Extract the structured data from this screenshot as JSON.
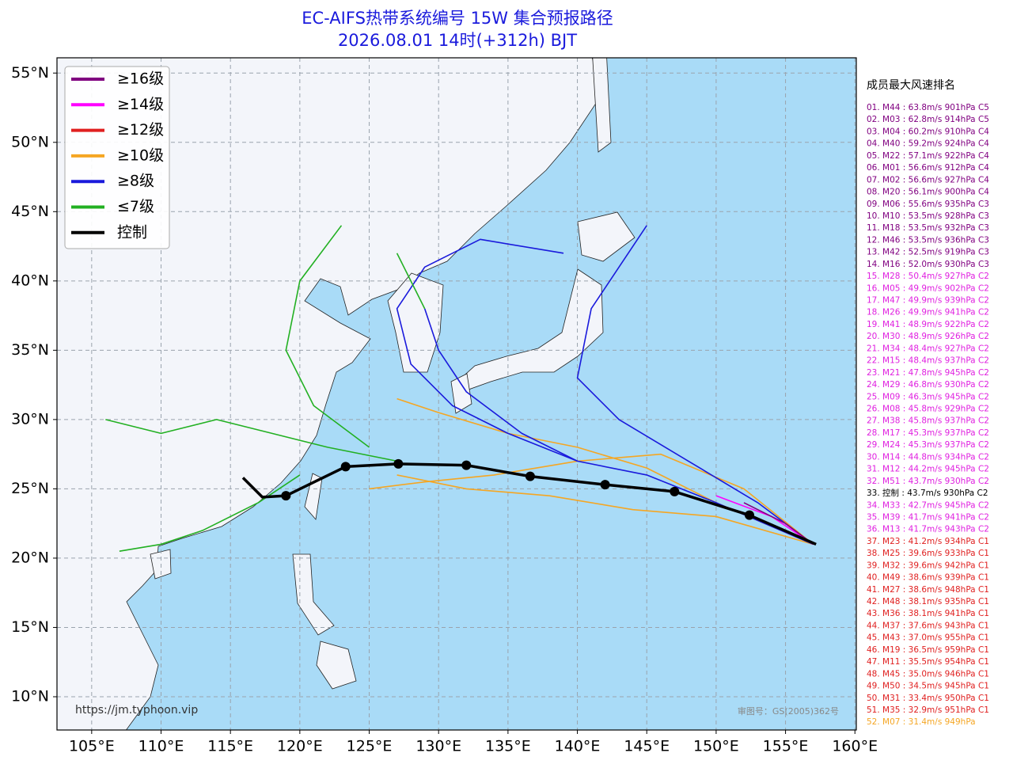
{
  "chart_data": {
    "type": "track-map",
    "title": "EC-AIFS热带系统编号 15W 集合预报路径",
    "subtitle": "2026.08.01 14时(+312h) BJT",
    "xlim": [
      102.5,
      160.1
    ],
    "ylim": [
      7.6,
      56.1
    ],
    "xticks": [
      {
        "value": 105,
        "label": "105°E"
      },
      {
        "value": 110,
        "label": "110°E"
      },
      {
        "value": 115,
        "label": "115°E"
      },
      {
        "value": 120,
        "label": "120°E"
      },
      {
        "value": 125,
        "label": "125°E"
      },
      {
        "value": 130,
        "label": "130°E"
      },
      {
        "value": 135,
        "label": "135°E"
      },
      {
        "value": 140,
        "label": "140°E"
      },
      {
        "value": 145,
        "label": "145°E"
      },
      {
        "value": 150,
        "label": "150°E"
      },
      {
        "value": 155,
        "label": "155°E"
      },
      {
        "value": 160,
        "label": "160°E"
      }
    ],
    "yticks": [
      {
        "value": 10,
        "label": "10°N"
      },
      {
        "value": 15,
        "label": "15°N"
      },
      {
        "value": 20,
        "label": "20°N"
      },
      {
        "value": 25,
        "label": "25°N"
      },
      {
        "value": 30,
        "label": "30°N"
      },
      {
        "value": 35,
        "label": "35°N"
      },
      {
        "value": 40,
        "label": "40°N"
      },
      {
        "value": 45,
        "label": "45°N"
      },
      {
        "value": 50,
        "label": "50°N"
      },
      {
        "value": 55,
        "label": "55°N"
      }
    ],
    "grid": true,
    "legend": [
      {
        "name": "≥16级",
        "color": "#800080"
      },
      {
        "name": "≥14级",
        "color": "#ff00ff"
      },
      {
        "name": "≥12级",
        "color": "#e02020"
      },
      {
        "name": "≥10级",
        "color": "#f5a623"
      },
      {
        "name": "≥8级",
        "color": "#1a1adc"
      },
      {
        "name": "≤7级",
        "color": "#22b022"
      },
      {
        "name": "控制",
        "color": "#000000"
      }
    ],
    "tracks": [
      {
        "color": "#f5a623",
        "x": [
          157,
          150,
          145,
          140,
          135,
          130,
          127
        ],
        "y": [
          21,
          24,
          26.5,
          28,
          29,
          30.5,
          31.5
        ]
      },
      {
        "color": "#f5a623",
        "x": [
          157,
          152,
          146,
          140,
          134,
          129,
          125
        ],
        "y": [
          21,
          25,
          27.5,
          27,
          26,
          25.5,
          25
        ]
      },
      {
        "color": "#f5a623",
        "x": [
          157,
          150,
          144,
          138,
          132,
          127
        ],
        "y": [
          21,
          23,
          23.5,
          24.5,
          25,
          26
        ]
      },
      {
        "color": "#1a1adc",
        "x": [
          157,
          150,
          145,
          140,
          135,
          131,
          128,
          127,
          129,
          133,
          139
        ],
        "y": [
          21,
          24,
          26,
          27,
          29,
          31,
          34,
          38,
          41,
          43,
          42
        ]
      },
      {
        "color": "#1a1adc",
        "x": [
          140,
          136,
          132,
          130,
          129
        ],
        "y": [
          27,
          29,
          32,
          35,
          38
        ]
      },
      {
        "color": "#22b022",
        "x": [
          129,
          127
        ],
        "y": [
          38,
          42
        ]
      },
      {
        "color": "#22b022",
        "x": [
          127,
          122,
          118,
          114,
          110,
          106
        ],
        "y": [
          27,
          28,
          29,
          30,
          29,
          30
        ]
      },
      {
        "color": "#22b022",
        "x": [
          125,
          121,
          119,
          120,
          123
        ],
        "y": [
          28,
          31,
          35,
          40,
          44
        ]
      },
      {
        "color": "#1a1adc",
        "x": [
          157,
          153,
          148,
          143,
          140,
          141,
          143,
          145
        ],
        "y": [
          21,
          24,
          27,
          30,
          33,
          38,
          41,
          44
        ]
      },
      {
        "color": "#22b022",
        "x": [
          120,
          117,
          113,
          110,
          107
        ],
        "y": [
          26,
          24,
          22,
          21,
          20.5
        ]
      },
      {
        "color": "#ff00ff",
        "x": [
          157,
          154,
          150
        ],
        "y": [
          21,
          23,
          24.5
        ]
      },
      {
        "color": "#800080",
        "x": [
          157,
          155,
          152
        ],
        "y": [
          21,
          22.5,
          24
        ]
      }
    ],
    "control": {
      "color": "#000000",
      "x": [
        157.2,
        152.4,
        147.0,
        142.0,
        136.6,
        132.0,
        127.1,
        123.3,
        119.0,
        117.3,
        115.9
      ],
      "y": [
        21.0,
        23.1,
        24.8,
        25.3,
        25.9,
        26.7,
        26.8,
        26.6,
        24.5,
        24.4,
        25.8
      ]
    },
    "ranking_title": "成员最大风速排名",
    "ranking": [
      {
        "label": "01. M44 : 63.8m/s 901hPa C5",
        "color": "#800080"
      },
      {
        "label": "02. M03 : 62.8m/s 914hPa C5",
        "color": "#800080"
      },
      {
        "label": "03. M04 : 60.2m/s 910hPa C4",
        "color": "#800080"
      },
      {
        "label": "04. M40 : 59.2m/s 924hPa C4",
        "color": "#800080"
      },
      {
        "label": "05. M22 : 57.1m/s 922hPa C4",
        "color": "#800080"
      },
      {
        "label": "06. M01 : 56.6m/s 912hPa C4",
        "color": "#800080"
      },
      {
        "label": "07. M02 : 56.6m/s 927hPa C4",
        "color": "#800080"
      },
      {
        "label": "08. M20 : 56.1m/s 900hPa C4",
        "color": "#800080"
      },
      {
        "label": "09. M06 : 55.6m/s 935hPa C3",
        "color": "#800080"
      },
      {
        "label": "10. M10 : 53.5m/s 928hPa C3",
        "color": "#800080"
      },
      {
        "label": "11. M18 : 53.5m/s 932hPa C3",
        "color": "#800080"
      },
      {
        "label": "12. M46 : 53.5m/s 936hPa C3",
        "color": "#800080"
      },
      {
        "label": "13. M42 : 52.5m/s 919hPa C3",
        "color": "#800080"
      },
      {
        "label": "14. M16 : 52.0m/s 930hPa C3",
        "color": "#800080"
      },
      {
        "label": "15. M28 : 50.4m/s 927hPa C2",
        "color": "#e020e0"
      },
      {
        "label": "16. M05 : 49.9m/s 902hPa C2",
        "color": "#e020e0"
      },
      {
        "label": "17. M47 : 49.9m/s 939hPa C2",
        "color": "#e020e0"
      },
      {
        "label": "18. M26 : 49.9m/s 941hPa C2",
        "color": "#e020e0"
      },
      {
        "label": "19. M41 : 48.9m/s 922hPa C2",
        "color": "#e020e0"
      },
      {
        "label": "20. M30 : 48.9m/s 926hPa C2",
        "color": "#e020e0"
      },
      {
        "label": "21. M34 : 48.4m/s 927hPa C2",
        "color": "#e020e0"
      },
      {
        "label": "22. M15 : 48.4m/s 937hPa C2",
        "color": "#e020e0"
      },
      {
        "label": "23. M21 : 47.8m/s 945hPa C2",
        "color": "#e020e0"
      },
      {
        "label": "24. M29 : 46.8m/s 930hPa C2",
        "color": "#e020e0"
      },
      {
        "label": "25. M09 : 46.3m/s 945hPa C2",
        "color": "#e020e0"
      },
      {
        "label": "26. M08 : 45.8m/s 929hPa C2",
        "color": "#e020e0"
      },
      {
        "label": "27. M38 : 45.8m/s 937hPa C2",
        "color": "#e020e0"
      },
      {
        "label": "28. M17 : 45.3m/s 937hPa C2",
        "color": "#e020e0"
      },
      {
        "label": "29. M24 : 45.3m/s 937hPa C2",
        "color": "#e020e0"
      },
      {
        "label": "30. M14 : 44.8m/s 934hPa C2",
        "color": "#e020e0"
      },
      {
        "label": "31. M12 : 44.2m/s 945hPa C2",
        "color": "#e020e0"
      },
      {
        "label": "32. M51 : 43.7m/s 930hPa C2",
        "color": "#e020e0"
      },
      {
        "label": "33. 控制 : 43.7m/s 930hPa C2",
        "color": "#000000"
      },
      {
        "label": "34. M33 : 42.7m/s 945hPa C2",
        "color": "#e020e0"
      },
      {
        "label": "35. M39 : 41.7m/s 941hPa C2",
        "color": "#e020e0"
      },
      {
        "label": "36. M13 : 41.7m/s 943hPa C2",
        "color": "#e020e0"
      },
      {
        "label": "37. M23 : 41.2m/s 934hPa C1",
        "color": "#e02020"
      },
      {
        "label": "38. M25 : 39.6m/s 933hPa C1",
        "color": "#e02020"
      },
      {
        "label": "39. M32 : 39.6m/s 942hPa C1",
        "color": "#e02020"
      },
      {
        "label": "40. M49 : 38.6m/s 939hPa C1",
        "color": "#e02020"
      },
      {
        "label": "41. M27 : 38.6m/s 948hPa C1",
        "color": "#e02020"
      },
      {
        "label": "42. M48 : 38.1m/s 935hPa C1",
        "color": "#e02020"
      },
      {
        "label": "43. M36 : 38.1m/s 941hPa C1",
        "color": "#e02020"
      },
      {
        "label": "44. M37 : 37.6m/s 943hPa C1",
        "color": "#e02020"
      },
      {
        "label": "45. M43 : 37.0m/s 955hPa C1",
        "color": "#e02020"
      },
      {
        "label": "46. M19 : 36.5m/s 959hPa C1",
        "color": "#e02020"
      },
      {
        "label": "47. M11 : 35.5m/s 954hPa C1",
        "color": "#e02020"
      },
      {
        "label": "48. M45 : 35.0m/s 946hPa C1",
        "color": "#e02020"
      },
      {
        "label": "49. M50 : 34.5m/s 945hPa C1",
        "color": "#e02020"
      },
      {
        "label": "50. M31 : 33.4m/s 950hPa C1",
        "color": "#e02020"
      },
      {
        "label": "51. M35 : 32.9m/s 951hPa C1",
        "color": "#e02020"
      },
      {
        "label": "52. M07 : 31.4m/s 949hPa",
        "color": "#f5a623"
      }
    ],
    "source": "https://jm.typhoon.vip",
    "approval": "审图号：GS(2005)362号"
  }
}
